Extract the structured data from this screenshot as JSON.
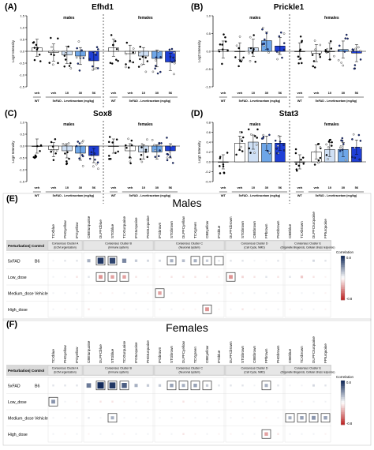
{
  "chart_data": [
    {
      "panel_label": "(A)",
      "title": "Efhd1",
      "type": "bar",
      "ylabel": "Log2 Intensity",
      "ylim": [
        -1.5,
        1.5
      ],
      "yticks": [
        -1.5,
        -1.0,
        -0.5,
        0.0,
        0.5,
        1.0,
        1.5
      ],
      "groups": [
        "males",
        "females"
      ],
      "categories": [
        "veh",
        "veh",
        "10",
        "30",
        "56"
      ],
      "wt_label": "WT",
      "treat_label": "5xFAD - Levetiracetam (mg/kg)",
      "series": [
        {
          "name": "males",
          "values": [
            0.15,
            -0.05,
            -0.15,
            -0.2,
            -0.4
          ]
        },
        {
          "name": "females",
          "values": [
            0.15,
            -0.1,
            -0.2,
            -0.3,
            -0.45
          ]
        }
      ],
      "colors": [
        "#ffffff",
        "#ffffff",
        "#cfe0f5",
        "#6ea6e8",
        "#1f3fd6"
      ]
    },
    {
      "panel_label": "(B)",
      "title": "Prickle1",
      "type": "bar",
      "ylabel": "Log2 Intensity",
      "ylim": [
        -1.0,
        1.0
      ],
      "yticks": [
        -1.0,
        -0.5,
        0.0,
        0.5,
        1.0
      ],
      "groups": [
        "males",
        "females"
      ],
      "categories": [
        "veh",
        "veh",
        "10",
        "30",
        "56"
      ],
      "wt_label": "WT",
      "treat_label": "5xFAD - Levetiracetam (mg/kg)",
      "series": [
        {
          "name": "males",
          "values": [
            0.05,
            0.0,
            0.1,
            0.3,
            0.15
          ]
        },
        {
          "name": "females",
          "values": [
            0.0,
            -0.05,
            0.0,
            0.05,
            -0.05
          ]
        }
      ],
      "colors": [
        "#ffffff",
        "#ffffff",
        "#cfe0f5",
        "#6ea6e8",
        "#1f3fd6"
      ]
    },
    {
      "panel_label": "(C)",
      "title": "Sox8",
      "type": "bar",
      "ylabel": "Log2 Intensity",
      "ylim": [
        -1.5,
        1.0
      ],
      "yticks": [
        -1.5,
        -1.0,
        -0.5,
        0.0,
        0.5,
        1.0
      ],
      "groups": [
        "males",
        "females"
      ],
      "categories": [
        "veh",
        "veh",
        "10",
        "30",
        "56"
      ],
      "wt_label": "WT",
      "treat_label": "5xFAD - Levetiracetam (mg/kg)",
      "series": [
        {
          "name": "males",
          "values": [
            0.0,
            -0.15,
            -0.2,
            -0.3,
            -0.4
          ]
        },
        {
          "name": "females",
          "values": [
            0.0,
            -0.2,
            -0.25,
            -0.25,
            -0.2
          ]
        }
      ],
      "colors": [
        "#ffffff",
        "#ffffff",
        "#cfe0f5",
        "#6ea6e8",
        "#1f3fd6"
      ]
    },
    {
      "panel_label": "(D)",
      "title": "Stat3",
      "type": "bar",
      "ylabel": "Log2 Intensity",
      "ylim": [
        -0.4,
        0.8
      ],
      "yticks": [
        -0.4,
        -0.2,
        0.0,
        0.2,
        0.4,
        0.6,
        0.8
      ],
      "groups": [
        "males",
        "females"
      ],
      "categories": [
        "veh",
        "veh",
        "10",
        "30",
        "56"
      ],
      "wt_label": "WT",
      "treat_label": "5xFAD - Levetiracetam (mg/kg)",
      "series": [
        {
          "name": "males",
          "values": [
            0.0,
            0.38,
            0.4,
            0.38,
            0.38
          ]
        },
        {
          "name": "females",
          "values": [
            0.0,
            0.2,
            0.25,
            0.25,
            0.3
          ]
        }
      ],
      "colors": [
        "#ffffff",
        "#ffffff",
        "#cfe0f5",
        "#6ea6e8",
        "#1f3fd6"
      ]
    },
    {
      "panel_label": "(E)",
      "title": "Males",
      "type": "heatmap",
      "columns": [
        "TCXblue",
        "PHGyellow",
        "IFGyellow",
        "CBEturquoise",
        "DLPFCblue",
        "STGblue",
        "TCXturquoise",
        "IFGturquoise",
        "PHGturquoise",
        "IFGbrown",
        "STGbrown",
        "DLPFCyellow",
        "TCXgreen",
        "CBEyellow",
        "IFGblue",
        "DLPFCbrown",
        "STGbrown",
        "CBEbrown",
        "FPbrown",
        "PHGbrown",
        "CBEblue",
        "TCXbrown",
        "DLPFCturquoise",
        "FPturquoise"
      ],
      "clusters": [
        {
          "name": "Consensus Cluster A",
          "sub": "(ECM organization)",
          "columns": 3
        },
        {
          "name": "Consensus Cluster B",
          "sub": "(Immune system)",
          "columns": 6
        },
        {
          "name": "Consensus Cluster C",
          "sub": "(Neuronal system)",
          "columns": 6
        },
        {
          "name": "Consensus Cluster D",
          "sub": "(Cell Cycle, NMD)",
          "columns": 5
        },
        {
          "name": "Consensus Cluster E",
          "sub": "(Organelle Biogensis, Cellular stress response)",
          "columns": 4
        }
      ],
      "header_label": "Perturbation| Control",
      "rows": [
        {
          "label": "5xFAD",
          "control": "B6",
          "values": [
            0.05,
            0.1,
            0.1,
            0.3,
            0.75,
            0.7,
            0.45,
            0.2,
            0.15,
            0.15,
            0.3,
            0.25,
            0.3,
            0.2,
            0.1,
            0.1,
            0.1,
            0.05,
            0.05,
            0.1,
            0.05,
            0.05,
            0.15,
            0.1
          ],
          "significant": [
            4,
            5,
            10,
            12,
            13,
            14
          ]
        },
        {
          "label": "Low_dose",
          "control": "",
          "values": [
            0.05,
            0.05,
            -0.1,
            0.1,
            -0.4,
            -0.35,
            -0.35,
            -0.1,
            -0.05,
            -0.05,
            -0.1,
            -0.1,
            -0.1,
            -0.1,
            -0.05,
            -0.4,
            -0.15,
            -0.1,
            0.1,
            -0.1,
            0.1,
            -0.2,
            -0.1,
            -0.05
          ],
          "significant": [
            4,
            5,
            6,
            15
          ]
        },
        {
          "label": "Medium_dose",
          "control": "Vehicle",
          "values": [
            0.05,
            0.05,
            0.05,
            0.05,
            -0.05,
            -0.05,
            0.05,
            0.05,
            -0.05,
            -0.35,
            0.05,
            -0.05,
            -0.05,
            0.05,
            -0.05,
            -0.05,
            0.05,
            0.05,
            0.05,
            0.05,
            -0.05,
            0.05,
            0.05,
            -0.05
          ],
          "significant": [
            9
          ]
        },
        {
          "label": "High_dose",
          "control": "",
          "values": [
            0.05,
            -0.05,
            0.05,
            -0.1,
            -0.05,
            -0.05,
            -0.05,
            0.05,
            0.05,
            -0.05,
            0.05,
            -0.05,
            -0.05,
            -0.4,
            -0.05,
            0.05,
            -0.1,
            -0.05,
            0.05,
            0.05,
            -0.05,
            0.05,
            0.05,
            -0.05
          ],
          "significant": [
            13
          ]
        }
      ],
      "legend": {
        "title": "Correlation",
        "max": "0.8",
        "min": "-0.8"
      }
    },
    {
      "panel_label": "(F)",
      "title": "Females",
      "type": "heatmap",
      "columns": [
        "TCXblue",
        "PHGyellow",
        "IFGyellow",
        "CBEturquoise",
        "DLPFCblue",
        "STGblue",
        "TCXturquoise",
        "IFGturquoise",
        "PHGturquoise",
        "IFGbrown",
        "STGbrown",
        "DLPFCyellow",
        "TCXgreen",
        "CBEyellow",
        "IFGblue",
        "DLPFCbrown",
        "STGbrown",
        "CBEbrown",
        "FPbrown",
        "PHGbrown",
        "CBEblue",
        "TCXbrown",
        "DLPFCturquoise",
        "FPturquoise"
      ],
      "clusters": [
        {
          "name": "Consensus Cluster A",
          "sub": "(ECM organization)",
          "columns": 3
        },
        {
          "name": "Consensus Cluster B",
          "sub": "(Immune system)",
          "columns": 6
        },
        {
          "name": "Consensus Cluster C",
          "sub": "(Neuronal system)",
          "columns": 6
        },
        {
          "name": "Consensus Cluster D",
          "sub": "(Cell Cycle, NMD)",
          "columns": 5
        },
        {
          "name": "Consensus Cluster E",
          "sub": "(Organelle Biogensis, Cellular stress response)",
          "columns": 4
        }
      ],
      "header_label": "Perturbation| Control",
      "rows": [
        {
          "label": "5xFAD",
          "control": "B6",
          "values": [
            0.1,
            0.1,
            0.1,
            0.5,
            0.8,
            0.75,
            0.6,
            0.3,
            0.2,
            0.2,
            0.35,
            0.3,
            0.35,
            0.2,
            0.1,
            0.1,
            0.1,
            0.05,
            0.3,
            0.1,
            0.05,
            0.05,
            0.15,
            0.1
          ],
          "significant": [
            4,
            5,
            6,
            10,
            11,
            12,
            13,
            18
          ]
        },
        {
          "label": "Low_dose",
          "control": "",
          "values": [
            0.4,
            0.05,
            -0.05,
            0.05,
            -0.1,
            -0.1,
            -0.05,
            0.05,
            -0.05,
            -0.05,
            0.05,
            -0.1,
            -0.05,
            0.05,
            -0.05,
            -0.05,
            0.05,
            0.05,
            0.05,
            0.05,
            0.05,
            -0.05,
            0.05,
            0.05
          ],
          "significant": [
            0
          ]
        },
        {
          "label": "Medium_dose",
          "control": "Vehicle",
          "values": [
            0.05,
            0.05,
            0.05,
            0.1,
            0.05,
            0.3,
            0.05,
            0.05,
            0.05,
            0.05,
            0.05,
            -0.05,
            0.05,
            0.05,
            0.05,
            0.05,
            0.05,
            -0.05,
            -0.05,
            0.05,
            0.3,
            0.35,
            0.4,
            0.35
          ],
          "significant": [
            5,
            20,
            21,
            22,
            23
          ]
        },
        {
          "label": "High_dose",
          "control": "",
          "values": [
            0.05,
            -0.05,
            0.05,
            -0.05,
            0.05,
            0.05,
            -0.05,
            0.05,
            0.05,
            -0.05,
            0.05,
            -0.1,
            -0.05,
            0.05,
            -0.05,
            -0.05,
            0.05,
            0.05,
            -0.35,
            -0.1,
            0.05,
            0.05,
            0.05,
            -0.05
          ],
          "significant": [
            18
          ]
        }
      ],
      "legend": {
        "title": "Correlation",
        "max": "0.8",
        "min": "-0.8"
      }
    }
  ]
}
